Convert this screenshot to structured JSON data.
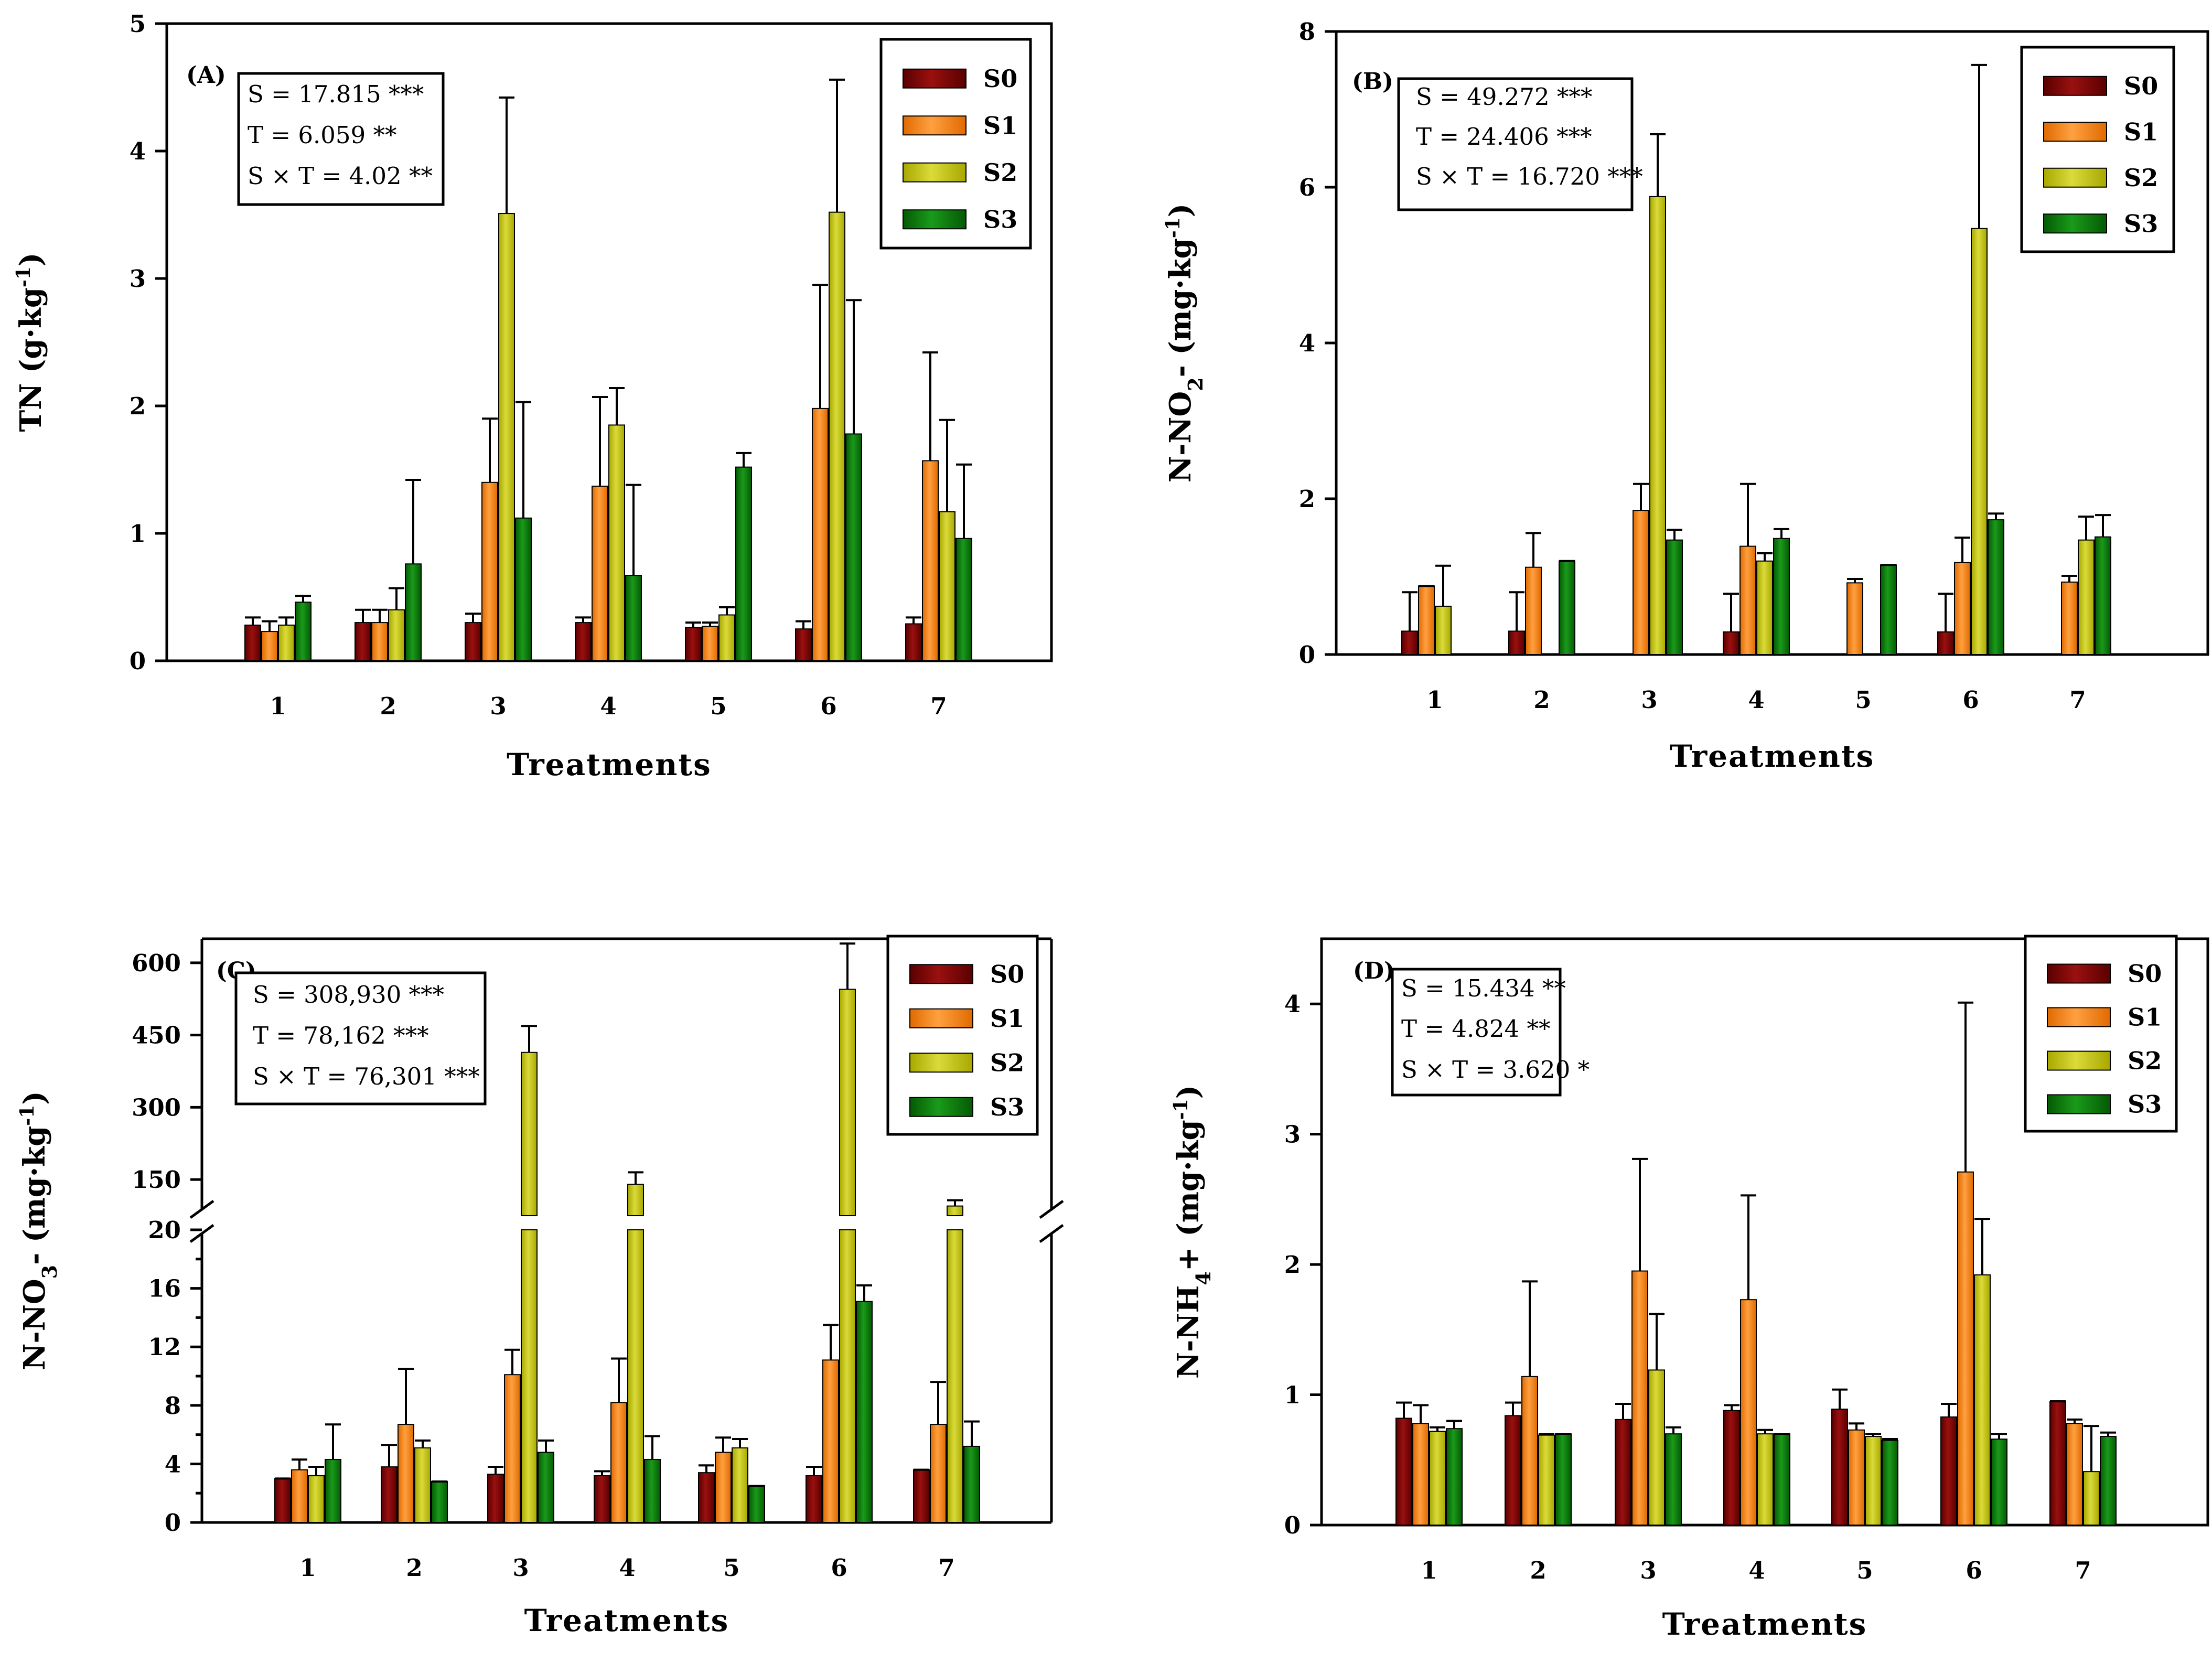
{
  "colors": {
    "S0": "#800000",
    "S1": "#ff8c1a",
    "S2": "#c8c81a",
    "S3": "#0a7a0a"
  },
  "series_names": [
    "S0",
    "S1",
    "S2",
    "S3"
  ],
  "chart_data": [
    {
      "type": "bar",
      "panel": "(A)",
      "xlabel": "Treatments",
      "ylabel": "TN (g·kg-1)",
      "ylabel_main": "TN (g·kg",
      "ylabel_sup": "-1",
      "ylabel_end": ")",
      "categories": [
        "1",
        "2",
        "3",
        "4",
        "5",
        "6",
        "7"
      ],
      "ylim": [
        0,
        5
      ],
      "yticks": [
        "0",
        "1",
        "2",
        "3",
        "4",
        "5"
      ],
      "stats": [
        "S = 17.815 ***",
        "T = 6.059 **",
        "S × T = 4.02 **"
      ],
      "legend": [
        "S0",
        "S1",
        "S2",
        "S3"
      ],
      "series": [
        {
          "name": "S0",
          "values": [
            0.28,
            0.3,
            0.3,
            0.3,
            0.26,
            0.25,
            0.29
          ],
          "errors": [
            0.06,
            0.1,
            0.07,
            0.04,
            0.04,
            0.06,
            0.05
          ]
        },
        {
          "name": "S1",
          "values": [
            0.23,
            0.3,
            1.4,
            1.37,
            0.27,
            1.98,
            1.57
          ],
          "errors": [
            0.08,
            0.1,
            0.5,
            0.7,
            0.03,
            0.97,
            0.85
          ]
        },
        {
          "name": "S2",
          "values": [
            0.28,
            0.4,
            3.51,
            1.85,
            0.36,
            3.52,
            1.17
          ],
          "errors": [
            0.06,
            0.17,
            0.91,
            0.29,
            0.06,
            1.04,
            0.72
          ]
        },
        {
          "name": "S3",
          "values": [
            0.46,
            0.76,
            1.12,
            0.67,
            1.52,
            1.78,
            0.96
          ],
          "errors": [
            0.05,
            0.66,
            0.91,
            0.71,
            0.11,
            1.05,
            0.58
          ]
        }
      ]
    },
    {
      "type": "bar",
      "panel": "(B)",
      "xlabel": "Treatments",
      "ylabel": "N-NO2- (mg·kg-1)",
      "ylabel_main": "N-NO",
      "ylabel_sub": "2",
      "ylabel_mid": "- (mg·kg",
      "ylabel_sup": "-1",
      "ylabel_end": ")",
      "categories": [
        "1",
        "2",
        "3",
        "4",
        "5",
        "6",
        "7"
      ],
      "ylim": [
        0,
        8
      ],
      "yticks": [
        "0",
        "2",
        "4",
        "6",
        "8"
      ],
      "stats": [
        "S = 49.272 ***",
        "T = 24.406 ***",
        "S × T = 16.720 ***"
      ],
      "legend": [
        "S0",
        "S1",
        "S2",
        "S3"
      ],
      "series": [
        {
          "name": "S0",
          "values": [
            0.3,
            0.3,
            0,
            0.29,
            0,
            0.29,
            0
          ],
          "errors": [
            0.5,
            0.5,
            0,
            0.49,
            0,
            0.49,
            0
          ]
        },
        {
          "name": "S1",
          "values": [
            0.88,
            1.12,
            1.85,
            1.39,
            0.92,
            1.18,
            0.93
          ],
          "errors": [
            0,
            0.44,
            0.34,
            0.8,
            0.05,
            0.32,
            0.08
          ]
        },
        {
          "name": "S2",
          "values": [
            0.62,
            0,
            5.88,
            1.2,
            0,
            5.47,
            1.47
          ],
          "errors": [
            0.52,
            0,
            0.8,
            0.1,
            0,
            2.1,
            0.3
          ]
        },
        {
          "name": "S3",
          "values": [
            0,
            1.2,
            1.47,
            1.49,
            1.15,
            1.73,
            1.51
          ],
          "errors": [
            0,
            0,
            0.13,
            0.12,
            0,
            0.08,
            0.28
          ]
        }
      ]
    },
    {
      "type": "bar",
      "panel": "(C)",
      "xlabel": "Treatments",
      "ylabel": "N-NO3- (mg·kg-1)",
      "ylabel_main": "N-NO",
      "ylabel_sub": "3",
      "ylabel_mid": "- (mg·kg",
      "ylabel_sup": "-1",
      "ylabel_end": ")",
      "categories": [
        "1",
        "2",
        "3",
        "4",
        "5",
        "6",
        "7"
      ],
      "broken_axis": {
        "lower_range": [
          0,
          20
        ],
        "upper_range": [
          75,
          650
        ]
      },
      "yticks_lower": [
        "0",
        "4",
        "8",
        "12",
        "16",
        "20"
      ],
      "yticks_upper": [
        "150",
        "300",
        "450",
        "600"
      ],
      "stats": [
        "S = 308,930 ***",
        "T = 78,162 ***",
        "S × T = 76,301 ***"
      ],
      "legend": [
        "S0",
        "S1",
        "S2",
        "S3"
      ],
      "series": [
        {
          "name": "S0",
          "values": [
            3.0,
            3.8,
            3.3,
            3.2,
            3.4,
            3.2,
            3.6
          ],
          "errors": [
            0,
            1.5,
            0.5,
            0.3,
            0.5,
            0.6,
            0
          ]
        },
        {
          "name": "S1",
          "values": [
            3.6,
            6.7,
            10.1,
            8.2,
            4.8,
            11.1,
            6.7
          ],
          "errors": [
            0.7,
            3.8,
            1.7,
            3.0,
            1.0,
            2.4,
            2.9
          ]
        },
        {
          "name": "S2",
          "values": [
            3.2,
            5.1,
            414,
            140,
            5.1,
            545,
            95
          ],
          "errors": [
            0.6,
            0.5,
            55,
            25,
            0.6,
            95,
            12
          ]
        },
        {
          "name": "S3",
          "values": [
            4.3,
            2.8,
            4.8,
            4.3,
            2.5,
            15.1,
            5.2
          ],
          "errors": [
            2.4,
            0,
            0.8,
            1.6,
            0,
            1.1,
            1.7
          ]
        }
      ]
    },
    {
      "type": "bar",
      "panel": "(D)",
      "xlabel": "Treatments",
      "ylabel": "N-NH4+ (mg·kg-1)",
      "ylabel_main": "N-NH",
      "ylabel_sub": "4",
      "ylabel_mid": "+ (mg·kg",
      "ylabel_sup": "-1",
      "ylabel_end": ")",
      "categories": [
        "1",
        "2",
        "3",
        "4",
        "5",
        "6",
        "7"
      ],
      "ylim": [
        0,
        4.5
      ],
      "yticks": [
        "0",
        "1",
        "2",
        "3",
        "4"
      ],
      "stats": [
        "S = 15.434 **",
        "T = 4.824 **",
        "S × T = 3.620 *"
      ],
      "legend": [
        "S0",
        "S1",
        "S2",
        "S3"
      ],
      "series": [
        {
          "name": "S0",
          "values": [
            0.82,
            0.84,
            0.81,
            0.88,
            0.89,
            0.83,
            0.95
          ],
          "errors": [
            0.12,
            0.1,
            0.12,
            0.04,
            0.15,
            0.1,
            0
          ]
        },
        {
          "name": "S1",
          "values": [
            0.78,
            1.14,
            1.95,
            1.73,
            0.73,
            2.71,
            0.78
          ],
          "errors": [
            0.14,
            0.73,
            0.86,
            0.8,
            0.05,
            1.3,
            0.03
          ]
        },
        {
          "name": "S2",
          "values": [
            0.72,
            0.69,
            1.19,
            0.7,
            0.68,
            1.92,
            0.41
          ],
          "errors": [
            0.03,
            0.01,
            0.43,
            0.03,
            0.02,
            0.43,
            0.35
          ]
        },
        {
          "name": "S3",
          "values": [
            0.74,
            0.7,
            0.7,
            0.7,
            0.65,
            0.66,
            0.68
          ],
          "errors": [
            0.06,
            0,
            0.05,
            0,
            0.01,
            0.04,
            0.03
          ]
        }
      ]
    }
  ]
}
